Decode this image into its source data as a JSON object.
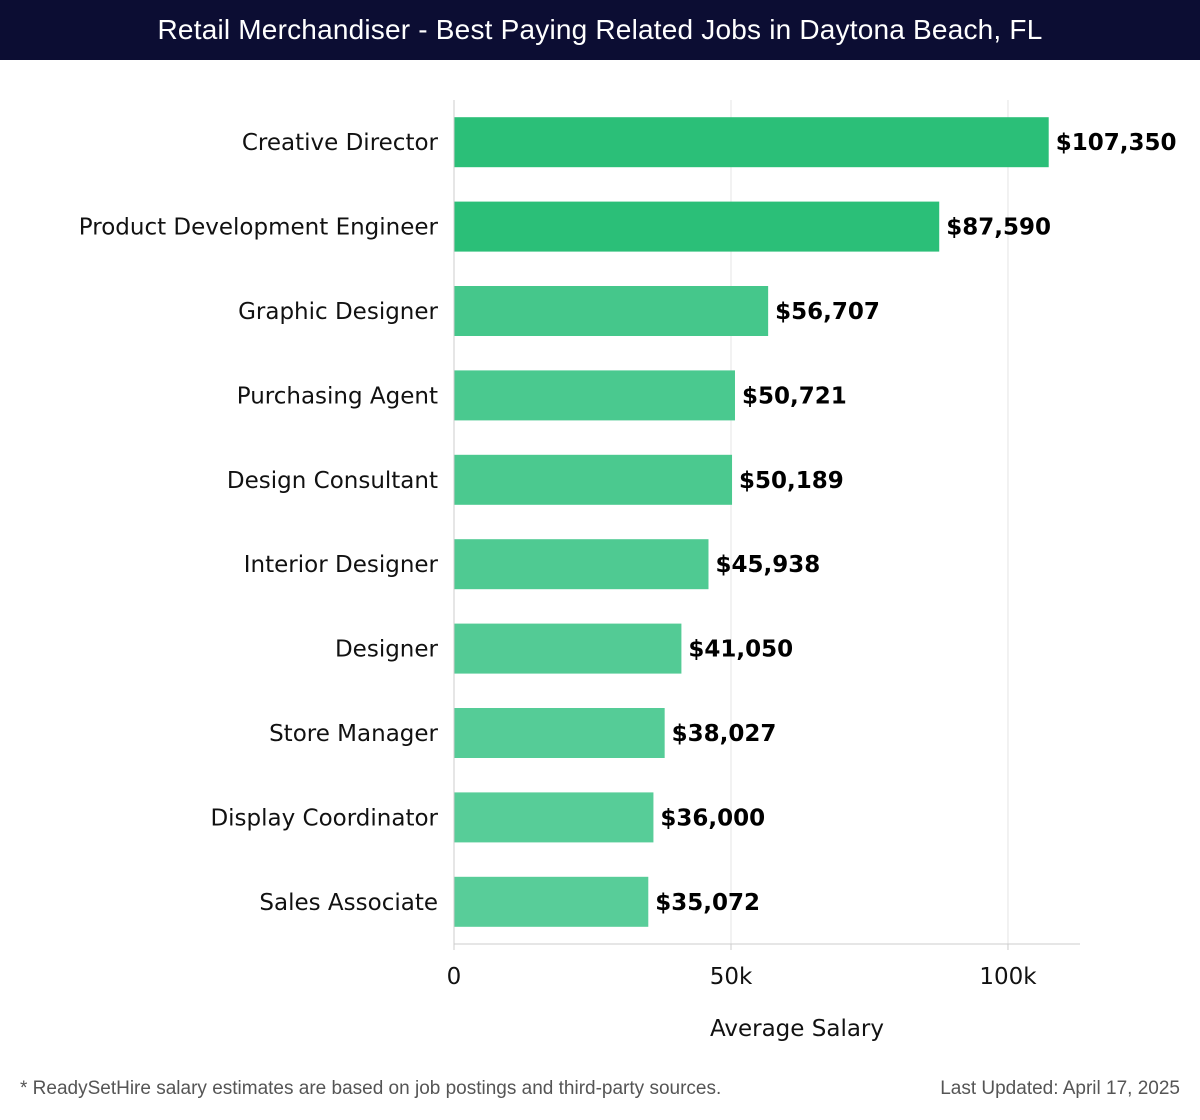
{
  "header": {
    "title": "Retail Merchandiser - Best Paying Related Jobs in Daytona Beach, FL"
  },
  "chart_data": {
    "type": "bar",
    "orientation": "horizontal",
    "title": "Retail Merchandiser - Best Paying Related Jobs in Daytona Beach, FL",
    "xlabel": "Average Salary",
    "ylabel": "",
    "xlim": [
      0,
      113000
    ],
    "grid": true,
    "x_ticks": [
      {
        "value": 0,
        "label": "0"
      },
      {
        "value": 50000,
        "label": "50k"
      },
      {
        "value": 100000,
        "label": "100k"
      }
    ],
    "categories": [
      "Creative Director",
      "Product Development Engineer",
      "Graphic Designer",
      "Purchasing Agent",
      "Design Consultant",
      "Interior Designer",
      "Designer",
      "Store Manager",
      "Display Coordinator",
      "Sales Associate"
    ],
    "values": [
      107350,
      87590,
      56707,
      50721,
      50189,
      45938,
      41050,
      38027,
      36000,
      35072
    ],
    "value_labels": [
      "$107,350",
      "$87,590",
      "$56,707",
      "$50,721",
      "$50,189",
      "$45,938",
      "$41,050",
      "$38,027",
      "$36,000",
      "$35,072"
    ],
    "colors": {
      "bar_high": "#2bbf78",
      "bar_low": "#58cd99",
      "grid": "#e4e4e4",
      "axis": "#cccccc"
    }
  },
  "footer": {
    "note": "* ReadySetHire salary estimates are based on job postings and third-party sources.",
    "updated": "Last Updated: April 17, 2025"
  }
}
